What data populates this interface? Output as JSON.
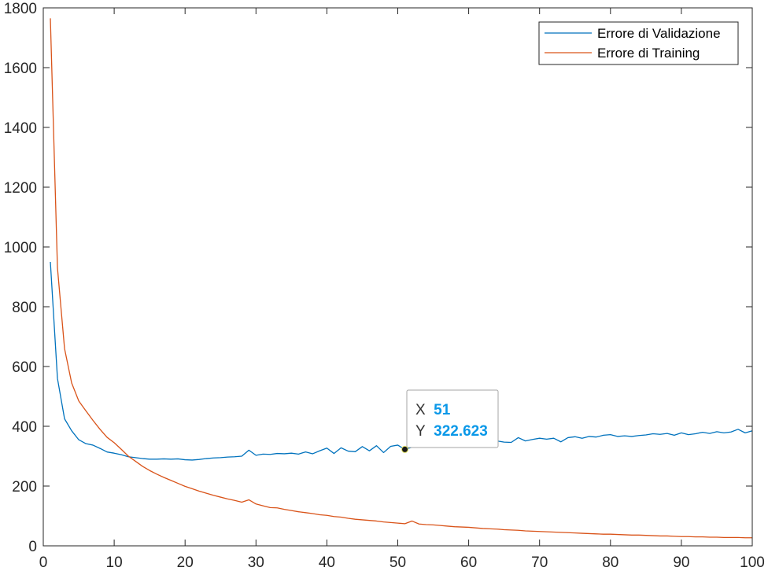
{
  "chart_data": {
    "type": "line",
    "title": "",
    "xlabel": "",
    "ylabel": "",
    "xlim": [
      0,
      100
    ],
    "ylim": [
      0,
      1800
    ],
    "xticks": [
      0,
      10,
      20,
      30,
      40,
      50,
      60,
      70,
      80,
      90,
      100
    ],
    "yticks": [
      0,
      200,
      400,
      600,
      800,
      1000,
      1200,
      1400,
      1600,
      1800
    ],
    "grid": false,
    "legend_position": "top-right",
    "series": [
      {
        "name": "Errore di Validazione",
        "color": "#0072BD",
        "x": [
          1,
          2,
          3,
          4,
          5,
          6,
          7,
          8,
          9,
          10,
          11,
          12,
          13,
          14,
          15,
          16,
          17,
          18,
          19,
          20,
          21,
          22,
          23,
          24,
          25,
          26,
          27,
          28,
          29,
          30,
          31,
          32,
          33,
          34,
          35,
          36,
          37,
          38,
          39,
          40,
          41,
          42,
          43,
          44,
          45,
          46,
          47,
          48,
          49,
          50,
          51,
          52,
          53,
          54,
          55,
          56,
          57,
          58,
          59,
          60,
          61,
          62,
          63,
          64,
          65,
          66,
          67,
          68,
          69,
          70,
          71,
          72,
          73,
          74,
          75,
          76,
          77,
          78,
          79,
          80,
          81,
          82,
          83,
          84,
          85,
          86,
          87,
          88,
          89,
          90,
          91,
          92,
          93,
          94,
          95,
          96,
          97,
          98,
          99,
          100
        ],
        "y": [
          950,
          560,
          425,
          385,
          355,
          342,
          337,
          326,
          314,
          310,
          305,
          298,
          295,
          292,
          290,
          290,
          291,
          290,
          291,
          288,
          287,
          289,
          292,
          294,
          295,
          297,
          298,
          300,
          320,
          303,
          307,
          306,
          309,
          308,
          310,
          307,
          314,
          308,
          318,
          327,
          309,
          328,
          317,
          315,
          332,
          318,
          335,
          312,
          333,
          337,
          322.6,
          330,
          336,
          333,
          338,
          344,
          340,
          342,
          350,
          346,
          348,
          352,
          350,
          351,
          347,
          346,
          362,
          351,
          356,
          360,
          357,
          360,
          348,
          362,
          365,
          360,
          366,
          364,
          370,
          372,
          366,
          368,
          366,
          369,
          371,
          375,
          373,
          376,
          370,
          378,
          372,
          375,
          380,
          376,
          382,
          378,
          381,
          390,
          378,
          385
        ]
      },
      {
        "name": "Errore di Training",
        "color": "#D95319",
        "x": [
          1,
          2,
          3,
          4,
          5,
          6,
          7,
          8,
          9,
          10,
          11,
          12,
          13,
          14,
          15,
          16,
          17,
          18,
          19,
          20,
          21,
          22,
          23,
          24,
          25,
          26,
          27,
          28,
          29,
          30,
          31,
          32,
          33,
          34,
          35,
          36,
          37,
          38,
          39,
          40,
          41,
          42,
          43,
          44,
          45,
          46,
          47,
          48,
          49,
          50,
          51,
          52,
          53,
          54,
          55,
          56,
          57,
          58,
          59,
          60,
          61,
          62,
          63,
          64,
          65,
          66,
          67,
          68,
          69,
          70,
          71,
          72,
          73,
          74,
          75,
          76,
          77,
          78,
          79,
          80,
          81,
          82,
          83,
          84,
          85,
          86,
          87,
          88,
          89,
          90,
          91,
          92,
          93,
          94,
          95,
          96,
          97,
          98,
          99,
          100
        ],
        "y": [
          1765,
          930,
          660,
          545,
          485,
          452,
          420,
          390,
          363,
          345,
          323,
          300,
          283,
          266,
          252,
          240,
          229,
          219,
          209,
          199,
          191,
          183,
          176,
          169,
          163,
          157,
          152,
          146,
          154,
          140,
          134,
          128,
          127,
          122,
          118,
          114,
          111,
          108,
          104,
          102,
          98,
          96,
          92,
          89,
          87,
          85,
          83,
          80,
          78,
          76,
          74,
          83,
          73,
          71,
          70,
          68,
          66,
          64,
          63,
          62,
          60,
          58,
          57,
          56,
          54,
          53,
          52,
          50,
          49,
          48,
          47,
          46,
          45,
          44,
          43,
          42,
          41,
          40,
          39,
          39,
          38,
          37,
          36,
          36,
          35,
          34,
          33,
          33,
          32,
          31,
          31,
          30,
          30,
          29,
          29,
          28,
          28,
          28,
          27,
          27
        ]
      }
    ],
    "datatip": {
      "x_key": "X",
      "x_value": "51",
      "y_key": "Y",
      "y_value": "322.623",
      "x": 51,
      "y": 322.623
    }
  }
}
